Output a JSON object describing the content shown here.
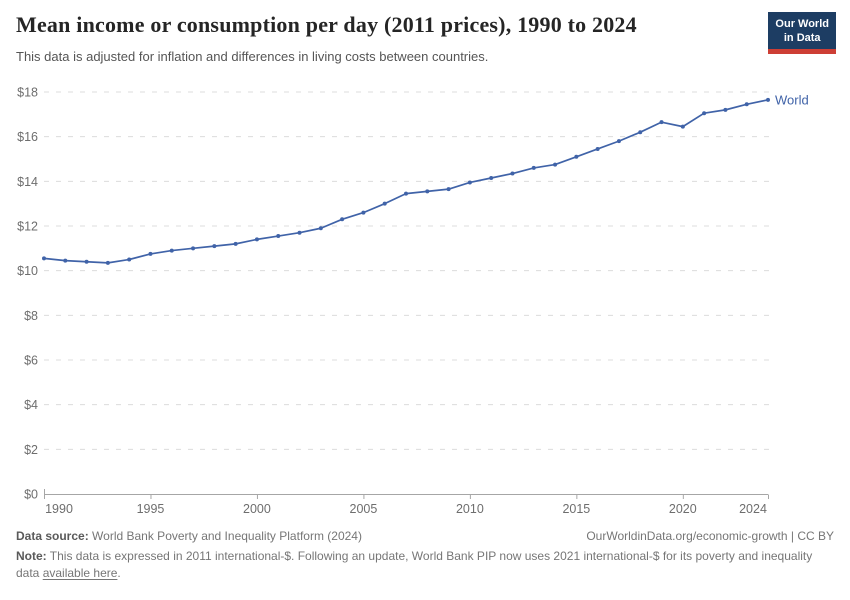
{
  "header": {
    "subtitle": "This data is adjusted for inflation and differences in living costs between countries.",
    "logo": {
      "line1": "Our World",
      "line2": "in Data",
      "bg": "#1d3d63",
      "bar": "#cd3e35"
    }
  },
  "chart_data": {
    "type": "line",
    "title": "Mean income or consumption per day (2011 prices), 1990 to 2024",
    "xlabel": "",
    "ylabel": "",
    "xlim": [
      1990,
      2024
    ],
    "ylim": [
      0,
      18
    ],
    "x_ticks": [
      1990,
      1995,
      2000,
      2005,
      2010,
      2015,
      2020,
      2024
    ],
    "y_ticks": [
      0,
      2,
      4,
      6,
      8,
      10,
      12,
      14,
      16,
      18
    ],
    "y_tick_prefix": "$",
    "grid": "horizontal dashed gridlines, solid baseline at $0",
    "legend": "series label at end of line",
    "x": [
      1990,
      1991,
      1992,
      1993,
      1994,
      1995,
      1996,
      1997,
      1998,
      1999,
      2000,
      2001,
      2002,
      2003,
      2004,
      2005,
      2006,
      2007,
      2008,
      2009,
      2010,
      2011,
      2012,
      2013,
      2014,
      2015,
      2016,
      2017,
      2018,
      2019,
      2020,
      2021,
      2022,
      2023,
      2024
    ],
    "series": [
      {
        "name": "World",
        "color": "#4063a8",
        "values": [
          10.55,
          10.45,
          10.4,
          10.35,
          10.5,
          10.75,
          10.9,
          11.0,
          11.1,
          11.2,
          11.4,
          11.55,
          11.7,
          11.9,
          12.3,
          12.6,
          13.0,
          13.45,
          13.55,
          13.65,
          13.95,
          14.15,
          14.35,
          14.6,
          14.75,
          15.1,
          15.45,
          15.8,
          16.2,
          16.65,
          16.45,
          17.05,
          17.2,
          17.45,
          17.65
        ]
      }
    ]
  },
  "footer": {
    "source_label": "Data source:",
    "source_value": "World Bank Poverty and Inequality Platform (2024)",
    "right_link": "OurWorldinData.org/economic-growth | CC BY",
    "note_label": "Note:",
    "note_before": "This data is expressed in 2011 international-$. Following an update, World Bank PIP now uses 2021 international-$ for its poverty and inequality data",
    "note_link": "available here",
    "note_after": "."
  }
}
